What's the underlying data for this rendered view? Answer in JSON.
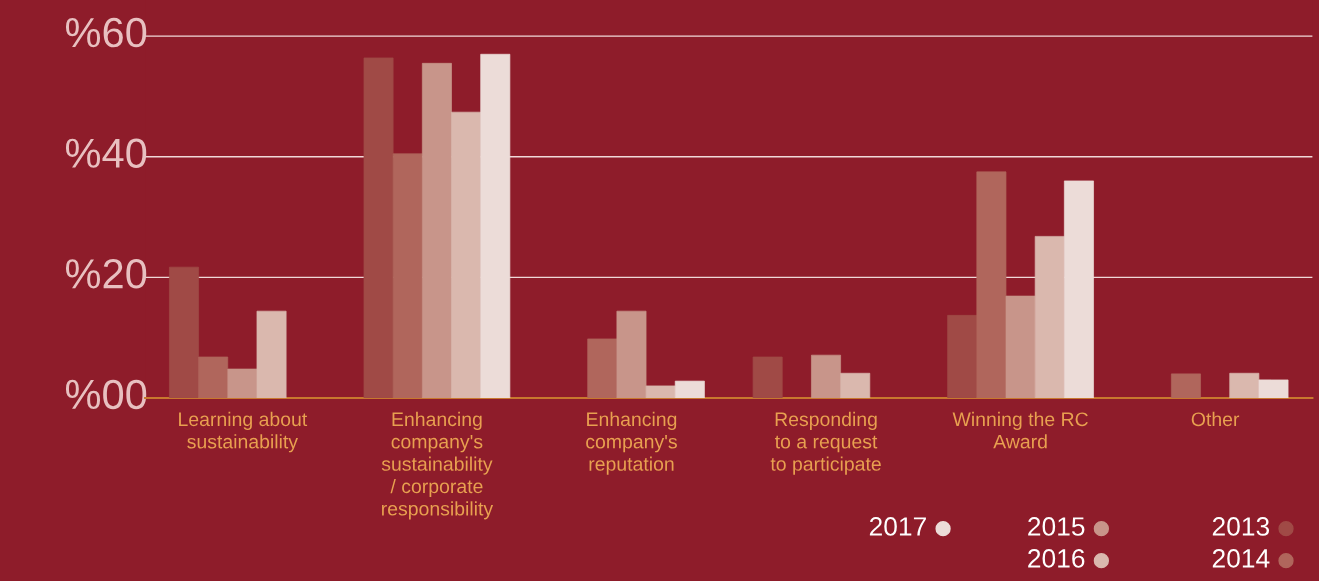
{
  "chart_data": {
    "type": "bar",
    "categories": [
      "Learning about\nsustainability",
      "Enhancing\ncompany's\nsustainability\n/ corporate\nresponsibility",
      "Enhancing\ncompany's\nreputation",
      "Responding\nto a request\nto participate",
      "Winning the RC\nAward",
      "Other"
    ],
    "series": [
      {
        "name": "2013",
        "color": "#a04a46",
        "values": [
          21.7,
          56.4,
          null,
          6.8,
          13.7,
          null
        ]
      },
      {
        "name": "2014",
        "color": "#b0665c",
        "values": [
          6.8,
          40.5,
          9.8,
          null,
          37.5,
          4.0
        ]
      },
      {
        "name": "2015",
        "color": "#c8958a",
        "values": [
          4.8,
          55.5,
          14.4,
          7.1,
          16.9,
          null
        ]
      },
      {
        "name": "2016",
        "color": "#dab8ae",
        "values": [
          14.4,
          47.4,
          2.0,
          4.1,
          26.8,
          4.1
        ]
      },
      {
        "name": "2017",
        "color": "#ecdcd8",
        "values": [
          null,
          57.0,
          2.8,
          null,
          36.0,
          3.0
        ]
      }
    ],
    "ylim": [
      0,
      66
    ],
    "yticks": [
      {
        "value": 0,
        "label": "%00"
      },
      {
        "value": 20,
        "label": "%20"
      },
      {
        "value": 40,
        "label": "%40"
      },
      {
        "value": 60,
        "label": "%60"
      }
    ],
    "grid": "y",
    "legend": "bottom right"
  }
}
